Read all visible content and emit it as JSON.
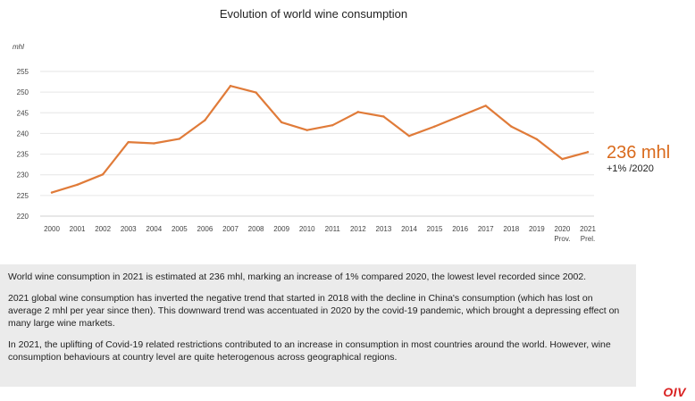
{
  "chart_data": {
    "type": "line",
    "title": "Evolution of world wine consumption",
    "unit": "mhl",
    "ylim": [
      220,
      255
    ],
    "yticks": [
      220,
      225,
      230,
      235,
      240,
      245,
      250,
      255
    ],
    "categories": [
      "2000",
      "2001",
      "2002",
      "2003",
      "2004",
      "2005",
      "2006",
      "2007",
      "2008",
      "2009",
      "2010",
      "2011",
      "2012",
      "2013",
      "2014",
      "2015",
      "2016",
      "2017",
      "2018",
      "2019",
      "2020",
      "2021"
    ],
    "category_sublabels": {
      "2020": "Prov.",
      "2021": "Prel."
    },
    "series": [
      {
        "name": "World wine consumption",
        "color": "#e07b39",
        "values": [
          225.7,
          227.6,
          230.1,
          237.9,
          237.6,
          238.7,
          243.2,
          251.5,
          249.9,
          242.7,
          240.8,
          242.0,
          245.2,
          244.1,
          239.4,
          241.7,
          244.2,
          246.7,
          241.7,
          238.6,
          233.8,
          235.5
        ]
      }
    ],
    "grid": true,
    "callout": {
      "value_text": "236 mhl",
      "change_text": "+1% /2020"
    }
  },
  "paragraphs": [
    [
      "World wine consumption in 2021 is estimated at 236 mhl, marking an increase of 1% compared 2020, the lowest level recorded since 2002."
    ],
    [
      "2021 global wine consumption has inverted the negative trend that started in 2018 with the decline in China's consumption (which has lost on average 2 mhl per year since then). This downward trend  was accentuated in 2020 by the covid-19 pandemic, which brought a depressing effect on many large wine markets."
    ],
    [
      "In 2021, the uplifting of Covid-19 related restrictions contributed to an increase in consumption in most countries around the world. However, wine consumption behaviours at country level are quite heterogenous across geographical regions."
    ]
  ],
  "logo": "OIV"
}
